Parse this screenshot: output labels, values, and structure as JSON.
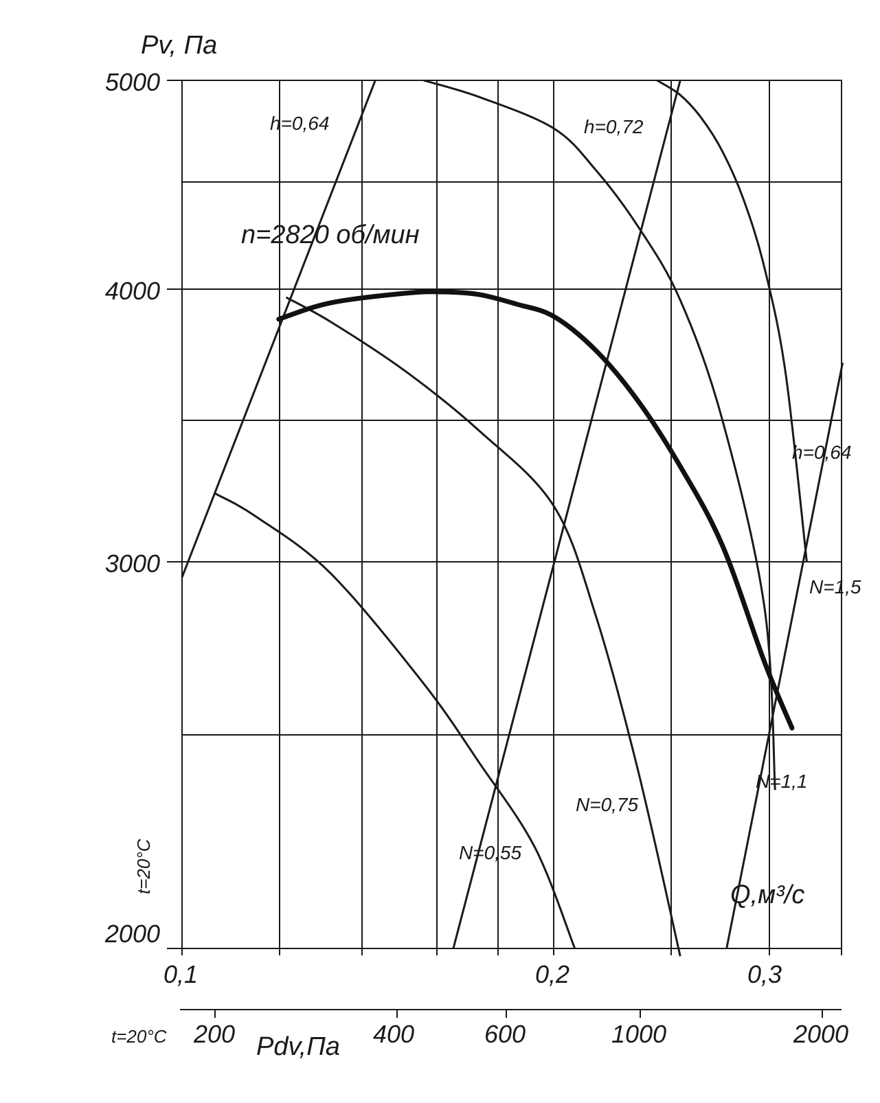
{
  "chart_data": {
    "type": "line",
    "ylabel": "Pv, Па",
    "xlabel": "Q,м³/с",
    "x_ticks": [
      "0,1",
      "0,2",
      "0,3"
    ],
    "y_ticks": [
      "5000",
      "4000",
      "3000",
      "2000"
    ],
    "ylim": [
      2000,
      5000
    ],
    "xlim": [
      0.1,
      0.34
    ],
    "speed_label": "n=2820 об/мин",
    "temperature_label": "t=20°C",
    "secondary_axis": {
      "label": "Pdv,Па",
      "temperature_label": "t=20°C",
      "ticks": [
        "200",
        "400",
        "600",
        "1000",
        "2000"
      ]
    },
    "main_curve": {
      "name": "n=2820 об/мин",
      "x": [
        0.126,
        0.14,
        0.16,
        0.17,
        0.18,
        0.19,
        0.2,
        0.22,
        0.24,
        0.26,
        0.28,
        0.3,
        0.313
      ],
      "y": [
        3890,
        3950,
        3985,
        3990,
        3980,
        3945,
        3900,
        3775,
        3590,
        3350,
        3060,
        2740,
        2570
      ]
    },
    "power_curves": [
      {
        "name": "N=0,55",
        "x": [
          0.109,
          0.12,
          0.14,
          0.165,
          0.18,
          0.195,
          0.21,
          0.229
        ],
        "y": [
          3250,
          3165,
          2970,
          2685,
          2480,
          2260,
          2000,
          2000
        ]
      },
      {
        "name": "N=0,75",
        "x": [
          0.128,
          0.14,
          0.16,
          0.18,
          0.2,
          0.22,
          0.24,
          0.26,
          0.275
        ],
        "y": [
          3970,
          3880,
          3700,
          3480,
          3205,
          2860,
          2460,
          1980,
          1995
        ]
      },
      {
        "name": "N=1,1",
        "x": [
          0.165,
          0.18,
          0.2,
          0.22,
          0.24,
          0.26,
          0.28,
          0.3,
          0.305
        ],
        "y": [
          5000,
          4920,
          4770,
          4570,
          4300,
          3960,
          3520,
          2880,
          2410
        ]
      },
      {
        "name": "N=1,5",
        "x": [
          0.249,
          0.26,
          0.27,
          0.28,
          0.29,
          0.3,
          0.31,
          0.32
        ],
        "y": [
          5000,
          4930,
          4820,
          4660,
          4430,
          4100,
          3690,
          3000
        ]
      }
    ],
    "efficiency_lines": [
      {
        "name": "h=0,64",
        "x": [
          0.1,
          0.152
        ],
        "y": [
          2960,
          5000
        ]
      },
      {
        "name": "h=0,72",
        "x": [
          0.173,
          0.26
        ],
        "y": [
          2000,
          5000
        ]
      },
      {
        "name": "h=0,64",
        "x": [
          0.282,
          0.337
        ],
        "y": [
          2000,
          3730
        ]
      }
    ],
    "curve_labels": {
      "eff_left": "h=0,64",
      "eff_mid": "h=0,72",
      "eff_right": "h=0,64",
      "n055": "N=0,55",
      "n075": "N=0,75",
      "n11": "N=1,1",
      "n15": "N=1,5"
    }
  }
}
